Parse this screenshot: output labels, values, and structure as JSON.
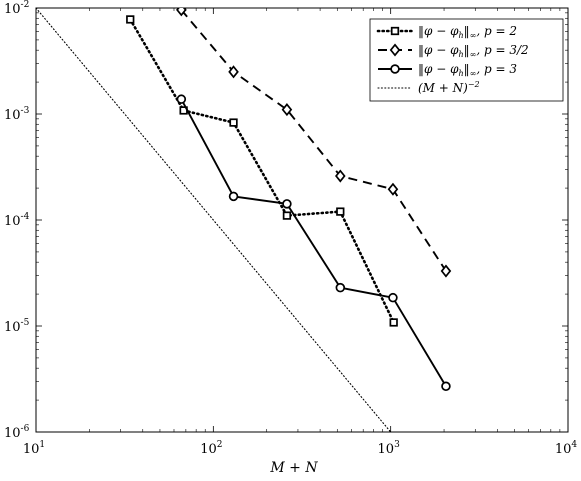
{
  "chart_data": {
    "type": "line",
    "xscale": "log",
    "yscale": "log",
    "xlim": [
      10,
      10000
    ],
    "ylim": [
      1e-06,
      0.01
    ],
    "xlabel": "M + N",
    "ylabel": "",
    "title": "",
    "grid": false,
    "legend_position": "top-right",
    "x_ticks": [
      {
        "base": "10",
        "exp": "1"
      },
      {
        "base": "10",
        "exp": "2"
      },
      {
        "base": "10",
        "exp": "3"
      },
      {
        "base": "10",
        "exp": "4"
      }
    ],
    "y_ticks": [
      {
        "base": "10",
        "exp": "-6"
      },
      {
        "base": "10",
        "exp": "-5"
      },
      {
        "base": "10",
        "exp": "-4"
      },
      {
        "base": "10",
        "exp": "-3"
      },
      {
        "base": "10",
        "exp": "-2"
      }
    ],
    "series": [
      {
        "name": "‖φ − φ_h‖_∞,  p = 2",
        "legend_parts": {
          "norm": "‖φ − φ",
          "sub": "h",
          "close": "‖",
          "inf": "∞",
          "param": ",  p = 2"
        },
        "style": "dotted",
        "marker": "square",
        "color": "#000000",
        "x": [
          34,
          68,
          130,
          260,
          520,
          1040
        ],
        "y": [
          0.0078,
          0.00108,
          0.00083,
          0.00011,
          0.00012,
          1.08e-05
        ]
      },
      {
        "name": "‖φ − φ_h‖_∞,  p = 3/2",
        "legend_parts": {
          "norm": "‖φ − φ",
          "sub": "h",
          "close": "‖",
          "inf": "∞",
          "param": ",  p = 3/2"
        },
        "style": "dashed",
        "marker": "diamond",
        "color": "#000000",
        "x": [
          66,
          130,
          260,
          520,
          1030,
          2050
        ],
        "y": [
          0.0096,
          0.0025,
          0.0011,
          0.00026,
          0.000195,
          3.3e-05
        ]
      },
      {
        "name": "‖φ − φ_h‖_∞,  p = 3",
        "legend_parts": {
          "norm": "‖φ − φ",
          "sub": "h",
          "close": "‖",
          "inf": "∞",
          "param": ",  p = 3"
        },
        "style": "solid",
        "marker": "circle",
        "color": "#000000",
        "x": [
          66,
          130,
          260,
          520,
          1030,
          2050
        ],
        "y": [
          0.00138,
          0.000167,
          0.000142,
          2.3e-05,
          1.85e-05,
          2.7e-06
        ]
      },
      {
        "name": "(M + N)^−2",
        "legend_parts": {
          "norm": "(M + N)",
          "sup": "−2"
        },
        "style": "dotted-thin",
        "marker": "none",
        "color": "#000000",
        "x": [
          10,
          1000
        ],
        "y": [
          0.01,
          1e-06
        ]
      }
    ]
  }
}
